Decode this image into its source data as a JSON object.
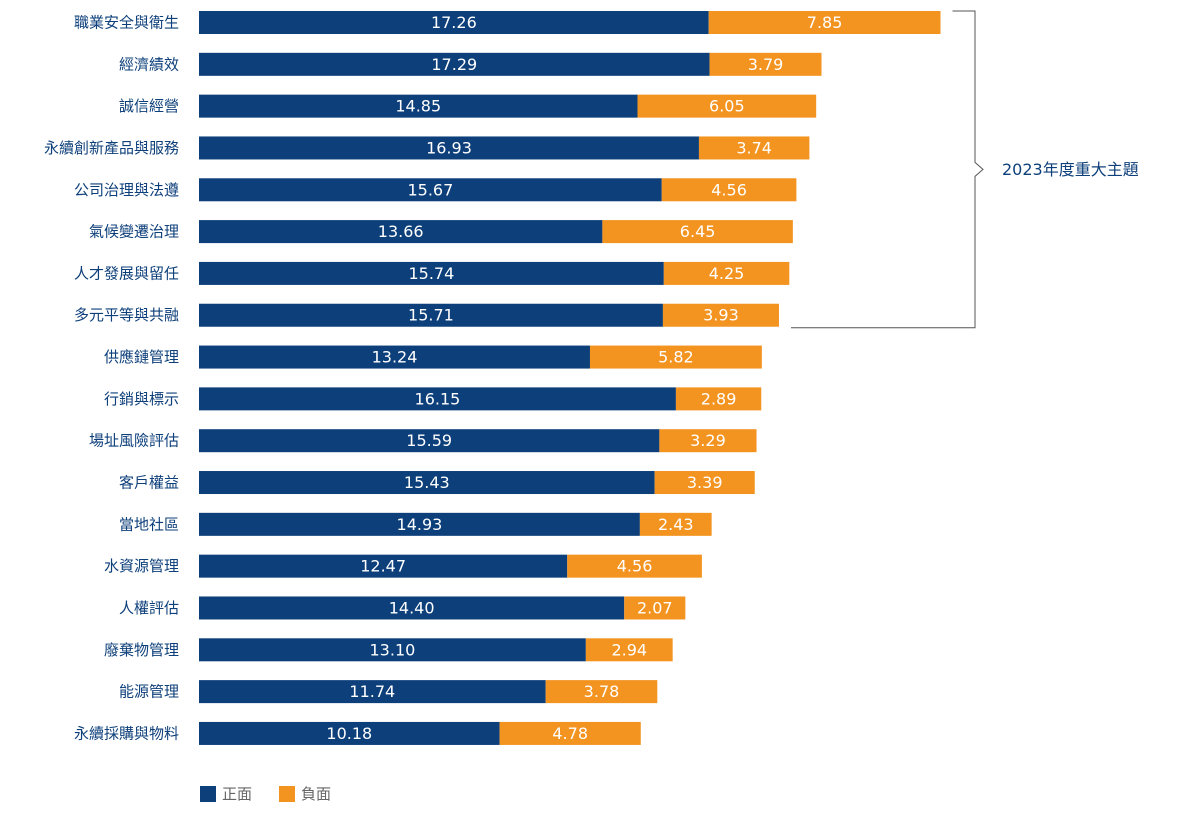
{
  "chart_data": {
    "type": "bar",
    "orientation": "horizontal",
    "stacked": true,
    "title": "",
    "xlabel": "",
    "ylabel": "",
    "xlim": [
      0,
      26
    ],
    "grid": false,
    "legend_position": "bottom-left",
    "categories": [
      "職業安全與衛生",
      "經濟績效",
      "誠信經營",
      "永續創新產品與服務",
      "公司治理與法遵",
      "氣候變遷治理",
      "人才發展與留任",
      "多元平等與共融",
      "供應鏈管理",
      "行銷與標示",
      "場址風險評估",
      "客戶權益",
      "當地社區",
      "水資源管理",
      "人權評估",
      "廢棄物管理",
      "能源管理",
      "永續採購與物料"
    ],
    "series": [
      {
        "name": "正面",
        "color": "#0d3f7a",
        "values": [
          17.26,
          17.29,
          14.85,
          16.93,
          15.67,
          13.66,
          15.74,
          15.71,
          13.24,
          16.15,
          15.59,
          15.43,
          14.93,
          12.47,
          14.4,
          13.1,
          11.74,
          10.18
        ],
        "labels": [
          "17.26",
          "17.29",
          "14.85",
          "16.93",
          "15.67",
          "13.66",
          "15.74",
          "15.71",
          "13.24",
          "16.15",
          "15.59",
          "15.43",
          "14.93",
          "12.47",
          "14.40",
          "13.10",
          "11.74",
          "10.18"
        ]
      },
      {
        "name": "負面",
        "color": "#f39320",
        "values": [
          7.85,
          3.79,
          6.05,
          3.74,
          4.56,
          6.45,
          4.25,
          3.93,
          5.82,
          2.89,
          3.29,
          3.39,
          2.43,
          4.56,
          2.07,
          2.94,
          3.78,
          4.78
        ],
        "labels": [
          "7.85",
          "3.79",
          "6.05",
          "3.74",
          "4.56",
          "6.45",
          "4.25",
          "3.93",
          "5.82",
          "2.89",
          "3.29",
          "3.39",
          "2.43",
          "4.56",
          "2.07",
          "2.94",
          "3.78",
          "4.78"
        ]
      }
    ],
    "annotations": [
      {
        "text": "2023年度重大主題",
        "bracket_from_category": 0,
        "bracket_to_category": 7,
        "color": "#0d3f7a"
      }
    ],
    "colors": {
      "category_label": "#0d3f7a",
      "bar_label": "#ffffff",
      "bracket": "#555555",
      "legend_text": "#666666"
    }
  }
}
